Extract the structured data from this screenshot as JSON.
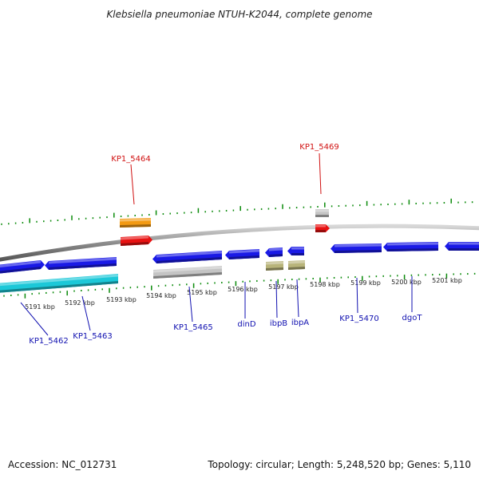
{
  "title": "Klebsiella pneumoniae NTUH-K2044, complete genome",
  "footer": {
    "accession": "Accession: NC_012731",
    "summary": "Topology: circular; Length: 5,248,520 bp; Genes: 5,110"
  },
  "colors": {
    "backbone": "#8c8c8c",
    "tick": "#0a8a0a",
    "label_below": "#1010b0",
    "label_above": "#d01010",
    "gene_blue": "#1a1ae6",
    "gene_cyan": "#1cc8d8",
    "gene_gray": "#c4c4c4",
    "gene_orange": "#f39a12",
    "gene_red": "#e81212",
    "gene_khaki": "#b8b47a"
  },
  "ticks": [
    {
      "label": "5191 kbp"
    },
    {
      "label": "5192 kbp"
    },
    {
      "label": "5193 kbp"
    },
    {
      "label": "5194 kbp"
    },
    {
      "label": "5195 kbp"
    },
    {
      "label": "5196 kbp"
    },
    {
      "label": "5197 kbp"
    },
    {
      "label": "5198 kbp"
    },
    {
      "label": "5199 kbp"
    },
    {
      "label": "5200 kbp"
    },
    {
      "label": "5201 kbp"
    }
  ],
  "gene_labels": [
    {
      "name": "KP1_5462",
      "side": "below"
    },
    {
      "name": "KP1_5463",
      "side": "below"
    },
    {
      "name": "KP1_5464",
      "side": "above"
    },
    {
      "name": "KP1_5465",
      "side": "below"
    },
    {
      "name": "dinD",
      "side": "below"
    },
    {
      "name": "ibpB",
      "side": "below"
    },
    {
      "name": "ibpA",
      "side": "below"
    },
    {
      "name": "KP1_5469",
      "side": "above"
    },
    {
      "name": "KP1_5470",
      "side": "below"
    },
    {
      "name": "dgoT",
      "side": "below"
    }
  ]
}
